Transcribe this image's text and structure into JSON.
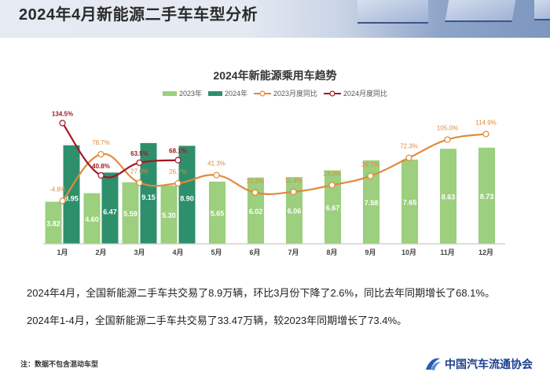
{
  "header": {
    "title": "2024年4月新能源二手车车型分析"
  },
  "chart": {
    "title": "2024年新能源乘用车趋势",
    "legend": [
      {
        "label": "2023年",
        "type": "bar",
        "color": "#9ccf7e"
      },
      {
        "label": "2024年",
        "type": "bar",
        "color": "#2e8f6c"
      },
      {
        "label": "2023月度同比",
        "type": "line",
        "color": "#e08a3c"
      },
      {
        "label": "2024月度同比",
        "type": "line",
        "color": "#a01822"
      }
    ]
  },
  "chart_data": {
    "type": "bar",
    "title": "2024年新能源乘用车趋势",
    "xlabel": "",
    "ylabel": "",
    "categories": [
      "1月",
      "2月",
      "3月",
      "4月",
      "5月",
      "6月",
      "7月",
      "8月",
      "9月",
      "10月",
      "11月",
      "12月"
    ],
    "series": [
      {
        "name": "2023年",
        "type": "bar",
        "color": "#9ccf7e",
        "values": [
          3.82,
          4.6,
          5.59,
          5.3,
          5.65,
          6.02,
          6.06,
          6.67,
          7.58,
          7.65,
          8.63,
          8.73
        ]
      },
      {
        "name": "2024年",
        "type": "bar",
        "color": "#2e8f6c",
        "values": [
          8.95,
          6.47,
          9.15,
          8.9
        ]
      },
      {
        "name": "2023月度同比",
        "type": "line",
        "color": "#e08a3c",
        "unit": "%",
        "values": [
          -4.8,
          78.7,
          27.6,
          26.7,
          41.3,
          10.2,
          11.4,
          23.3,
          39.7,
          72.3,
          105.0,
          114.9
        ]
      },
      {
        "name": "2024月度同比",
        "type": "line",
        "color": "#a01822",
        "unit": "%",
        "values": [
          134.5,
          40.8,
          63.5,
          68.1
        ]
      }
    ],
    "bar_labels": {
      "2023": [
        "3.82",
        "4.60",
        "5.59",
        "5.30",
        "5.65",
        "6.02",
        "6.06",
        "6.67",
        "7.58",
        "7.65",
        "8.63",
        "8.73"
      ],
      "2024": [
        "8.95",
        "6.47",
        "9.15",
        "8.90"
      ]
    },
    "line_labels": {
      "2023": [
        "-4.8%",
        "78.7%",
        "27.6%",
        "26.7%",
        "41.3%",
        "10.2%",
        "11.4%",
        "23.3%",
        "39.7%",
        "72.3%",
        "105.0%",
        "114.9%"
      ],
      "2024": [
        "134.5%",
        "40.8%",
        "63.5%",
        "68.1%"
      ]
    },
    "grid": false,
    "legend_position": "top"
  },
  "summary": {
    "line1": "2024年4月，全国新能源二手车共交易了8.9万辆，环比3月份下降了2.6%，同比去年同期增长了68.1%。",
    "line2": "2024年1-4月，全国新能源二手车共交易了33.47万辆，较2023年同期增长了73.4%。"
  },
  "footer": {
    "note": "注：数据不包含混动车型",
    "logo_text": "中国汽车流通协会"
  }
}
